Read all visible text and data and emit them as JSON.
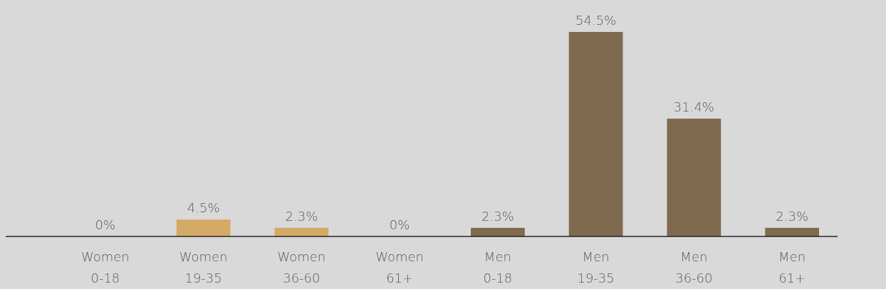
{
  "chart_data": {
    "type": "bar",
    "categories": [
      "Women\n0-18",
      "Women\n19-35",
      "Women\n36-60",
      "Women\n61+",
      "Men\n0-18",
      "Men\n19-35",
      "Men\n36-60",
      "Men\n61+"
    ],
    "values": [
      0,
      4.5,
      2.3,
      0,
      2.3,
      54.5,
      31.4,
      2.3
    ],
    "colors": [
      "#d4aa66",
      "#d4aa66",
      "#d4aa66",
      "#d4aa66",
      "#7f6a50",
      "#7f6a50",
      "#7f6a50",
      "#7f6a50"
    ],
    "value_labels": [
      "0%",
      "4.5%",
      "2.3%",
      "0%",
      "2.3%",
      "54.5%",
      "31.4%",
      "2.3%"
    ]
  }
}
